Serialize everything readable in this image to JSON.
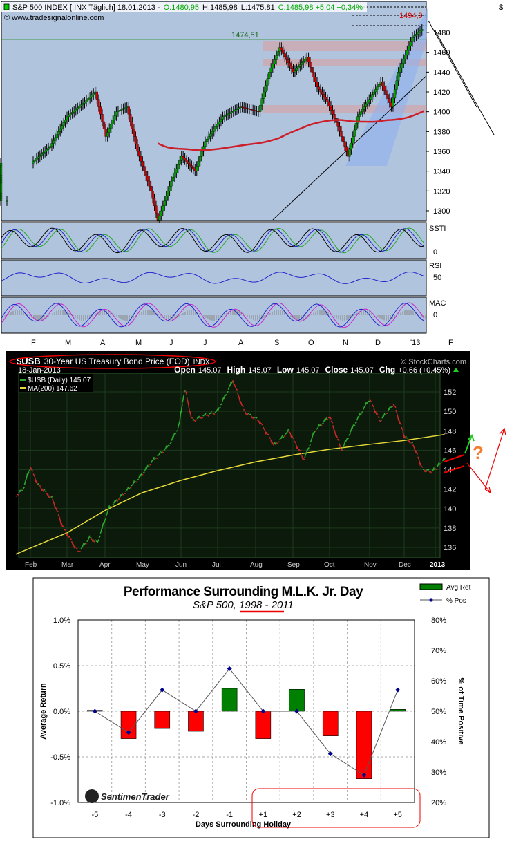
{
  "chart_data": [
    {
      "type": "line",
      "header": {
        "symbol": "S&P 500 INDEX [.INX  Täglich] 18.01.2013 -",
        "open": "O:1480,95",
        "high": "H:1485,98",
        "low": "L:1475,81",
        "close": "C:1485,98 +5,04 +0,34%"
      },
      "watermark": "© www.tradesignalonline.com",
      "currency_label": "$",
      "annotations": [
        "1474,51",
        "1494,9"
      ],
      "y_ticks": [
        1300,
        1320,
        1340,
        1360,
        1380,
        1400,
        1420,
        1440,
        1460,
        1480
      ],
      "ylim": [
        1290,
        1510
      ],
      "x_ticks": [
        "F",
        "M",
        "A",
        "M",
        "J",
        "J",
        "A",
        "S",
        "O",
        "N",
        "D",
        "'13",
        "F"
      ],
      "series": [
        {
          "values_by_month": [
            [
              0,
              1310
            ],
            [
              0.5,
              1330
            ],
            [
              1,
              1350
            ],
            [
              1.5,
              1365
            ],
            [
              2,
              1395
            ],
            [
              2.5,
              1410
            ],
            [
              2.8,
              1420
            ],
            [
              3.1,
              1375
            ],
            [
              3.4,
              1400
            ],
            [
              3.7,
              1405
            ],
            [
              4,
              1360
            ],
            [
              4.4,
              1320
            ],
            [
              4.6,
              1290
            ],
            [
              5,
              1330
            ],
            [
              5.3,
              1355
            ],
            [
              5.7,
              1340
            ],
            [
              6,
              1370
            ],
            [
              6.5,
              1395
            ],
            [
              7,
              1405
            ],
            [
              7.5,
              1400
            ],
            [
              7.8,
              1440
            ],
            [
              8.1,
              1465
            ],
            [
              8.5,
              1440
            ],
            [
              8.9,
              1455
            ],
            [
              9.2,
              1425
            ],
            [
              9.5,
              1410
            ],
            [
              9.8,
              1385
            ],
            [
              10.1,
              1355
            ],
            [
              10.4,
              1395
            ],
            [
              10.8,
              1415
            ],
            [
              11.1,
              1430
            ],
            [
              11.4,
              1405
            ],
            [
              11.6,
              1440
            ],
            [
              12,
              1475
            ],
            [
              12.3,
              1485
            ]
          ]
        }
      ],
      "indicators": [
        {
          "label": "SSTI",
          "ticks": [
            "0"
          ]
        },
        {
          "label": "RSI",
          "ticks": [
            "50"
          ]
        },
        {
          "label": "MAC",
          "ticks": [
            "0"
          ]
        }
      ],
      "colors": {
        "background": "#b0c4de",
        "ma_fast": "#4a7fd6",
        "ma_slow": "#cc1f2a",
        "up": "#00a000",
        "down": "#d00000"
      }
    },
    {
      "type": "line",
      "title_symbol": "$USB",
      "title": "30-Year US Treasury Bond Price (EOD)",
      "exchange": "INDX",
      "source": "© StockCharts.com",
      "date": "18-Jan-2013",
      "ohlc": {
        "open_label": "Open",
        "open": "145.07",
        "high_label": "High",
        "high": "145.07",
        "low_label": "Low",
        "low": "145.07",
        "close_label": "Close",
        "close": "145.07",
        "chg_label": "Chg",
        "chg": "+0.66 (+0.45%)"
      },
      "legend": [
        "$USB (Daily) 145.07",
        "MA(200) 147.62"
      ],
      "y_ticks": [
        136,
        138,
        140,
        142,
        144,
        146,
        148,
        150,
        152
      ],
      "ylim": [
        135,
        154
      ],
      "x_ticks": [
        "Feb",
        "Mar",
        "Apr",
        "May",
        "Jun",
        "Jul",
        "Aug",
        "Sep",
        "Oct",
        "Nov",
        "Dec",
        "2013"
      ],
      "annotation": "?",
      "price_by_month": [
        [
          -0.4,
          141.3
        ],
        [
          -0.2,
          142
        ],
        [
          0,
          144.3
        ],
        [
          0.2,
          142.5
        ],
        [
          0.6,
          141
        ],
        [
          0.9,
          138
        ],
        [
          1.3,
          135.5
        ],
        [
          1.6,
          137
        ],
        [
          1.8,
          136.5
        ],
        [
          2.1,
          140
        ],
        [
          2.5,
          141.5
        ],
        [
          2.9,
          143
        ],
        [
          3.3,
          145
        ],
        [
          3.7,
          146.5
        ],
        [
          3.95,
          148.5
        ],
        [
          4.1,
          152.5
        ],
        [
          4.3,
          149
        ],
        [
          4.6,
          149.5
        ],
        [
          5,
          150
        ],
        [
          5.4,
          153.2
        ],
        [
          5.7,
          150
        ],
        [
          6.1,
          149
        ],
        [
          6.5,
          146.5
        ],
        [
          6.9,
          148
        ],
        [
          7.3,
          145
        ],
        [
          7.6,
          148
        ],
        [
          8,
          149.5
        ],
        [
          8.3,
          146
        ],
        [
          8.6,
          148.5
        ],
        [
          9,
          151.3
        ],
        [
          9.3,
          149
        ],
        [
          9.7,
          150.8
        ],
        [
          10,
          147.5
        ],
        [
          10.3,
          146.5
        ],
        [
          10.6,
          144
        ],
        [
          10.9,
          143.8
        ],
        [
          11.3,
          145.07
        ]
      ],
      "ma200_by_month": [
        [
          -0.4,
          135.3
        ],
        [
          1,
          137.5
        ],
        [
          2,
          139.8
        ],
        [
          3,
          141.6
        ],
        [
          4,
          142.9
        ],
        [
          5,
          143.9
        ],
        [
          6,
          144.8
        ],
        [
          7,
          145.5
        ],
        [
          8,
          146.1
        ],
        [
          9,
          146.6
        ],
        [
          10,
          147
        ],
        [
          11.3,
          147.62
        ]
      ],
      "colors": {
        "background": "#000000",
        "price_up": "#2ea82e",
        "price_down": "#c62828",
        "ma": "#e6d93a"
      }
    },
    {
      "type": "bar",
      "title": "Performance Surrounding M.L.K. Jr. Day",
      "subtitle": "S&P 500, 1998 - 2011",
      "xlabel": "Days Surrounding Holiday",
      "ylabel": "Average Return",
      "y2label": "% of Time Positive",
      "categories": [
        "-5",
        "-4",
        "-3",
        "-2",
        "-1",
        "+1",
        "+2",
        "+3",
        "+4",
        "+5"
      ],
      "series": [
        {
          "name": "Avg Ret",
          "type": "bar",
          "values": [
            0.01,
            -0.3,
            -0.19,
            -0.22,
            0.25,
            -0.3,
            0.24,
            -0.27,
            -0.74,
            0.02
          ]
        },
        {
          "name": "% Pos",
          "type": "line",
          "axis": "right",
          "values": [
            50,
            43,
            57,
            50,
            64,
            50,
            50,
            36,
            29,
            57
          ]
        }
      ],
      "y_ticks": [
        "1.0%",
        "0.5%",
        "0.0%",
        "-0.5%",
        "-1.0%"
      ],
      "y2_ticks": [
        "80%",
        "70%",
        "60%",
        "50%",
        "40%",
        "30%",
        "20%"
      ],
      "ylim": [
        -1.0,
        1.0
      ],
      "y2lim": [
        20,
        80
      ],
      "logo": "SentimenTrader",
      "colors": {
        "positive": "#008000",
        "negative": "#ff0000",
        "line": "#555555",
        "marker": "#00008b"
      }
    }
  ]
}
